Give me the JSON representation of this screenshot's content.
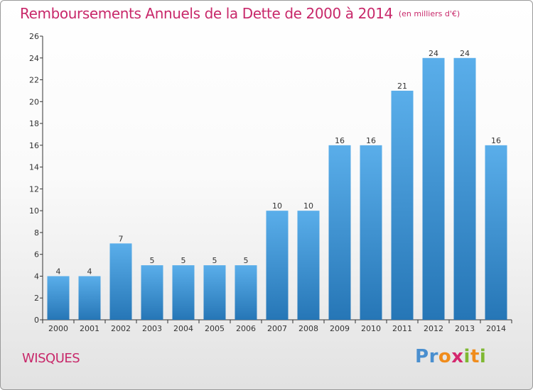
{
  "title": "Remboursements Annuels de la Dette de 2000 à 2014",
  "subtitle": "(en milliers d'€)",
  "place_name": "WISQUES",
  "logo": {
    "text": "Proxiti",
    "letters": [
      "P",
      "r",
      "o",
      "x",
      "i",
      "t",
      "i"
    ],
    "colors": [
      "#4a8fcf",
      "#4a8fcf",
      "#f08c1c",
      "#d4286e",
      "#7fb832",
      "#f08c1c",
      "#7fb832"
    ]
  },
  "colors": {
    "title": "#c8286a",
    "bar_top": "#5aaeea",
    "bar_bottom": "#2676b6",
    "axis": "#333333"
  },
  "chart_data": {
    "type": "bar",
    "title": "Remboursements Annuels de la Dette de 2000 à 2014",
    "xlabel": "",
    "ylabel": "",
    "categories": [
      "2000",
      "2001",
      "2002",
      "2003",
      "2004",
      "2005",
      "2006",
      "2007",
      "2008",
      "2009",
      "2010",
      "2011",
      "2012",
      "2013",
      "2014"
    ],
    "values": [
      4,
      4,
      7,
      5,
      5,
      5,
      5,
      10,
      10,
      16,
      16,
      21,
      24,
      24,
      16
    ],
    "ylim": [
      0,
      26
    ],
    "yticks": [
      0,
      2,
      4,
      6,
      8,
      10,
      12,
      14,
      16,
      18,
      20,
      22,
      24,
      26
    ],
    "grid": false,
    "legend": "none"
  }
}
